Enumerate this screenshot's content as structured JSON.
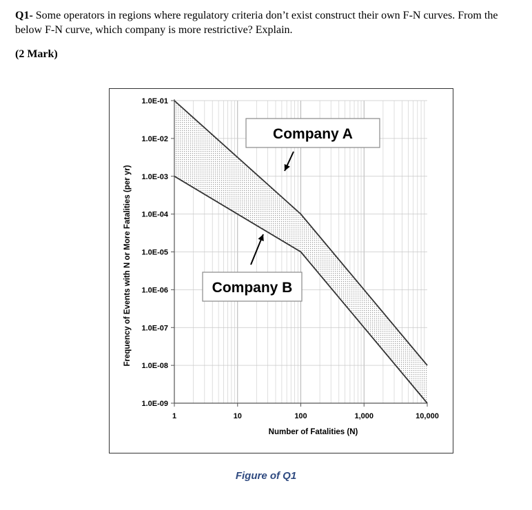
{
  "question": {
    "number": "Q1-",
    "text": " Some operators in regions where regulatory criteria don’t exist construct their own F-N curves. From the below F-N curve, which company is more restrictive? Explain.",
    "marks": "(2 Mark)"
  },
  "caption": "Figure of Q1",
  "chart_data": {
    "type": "line",
    "xlabel": "Number of Fatalities (N)",
    "ylabel": "Frequency of Events with N or More Fatalities (per yr)",
    "x_scale": "log",
    "y_scale": "log",
    "xlim": [
      1,
      10000
    ],
    "ylim": [
      1e-09,
      0.1
    ],
    "x_tick_values": [
      1,
      10,
      100,
      1000,
      10000
    ],
    "x_tick_labels": [
      "1",
      "10",
      "100",
      "1,000",
      "10,000"
    ],
    "y_tick_values": [
      0.1,
      0.01,
      0.001,
      0.0001,
      1e-05,
      1e-06,
      1e-07,
      1e-08,
      1e-09
    ],
    "y_tick_labels": [
      "1.0E-01",
      "1.0E-02",
      "1.0E-03",
      "1.0E-04",
      "1.0E-05",
      "1.0E-06",
      "1.0E-07",
      "1.0E-08",
      "1.0E-09"
    ],
    "grid": true,
    "shaded_band_between_series": true,
    "series": [
      {
        "name": "Company A",
        "x": [
          1,
          100,
          10000
        ],
        "y": [
          0.1,
          0.0001,
          1e-08
        ]
      },
      {
        "name": "Company B",
        "x": [
          1,
          100,
          10000
        ],
        "y": [
          0.001,
          1e-05,
          1e-09
        ]
      }
    ],
    "annotations": [
      {
        "text": "Company A",
        "points_to_series": 0
      },
      {
        "text": "Company B",
        "points_to_series": 1
      }
    ]
  }
}
